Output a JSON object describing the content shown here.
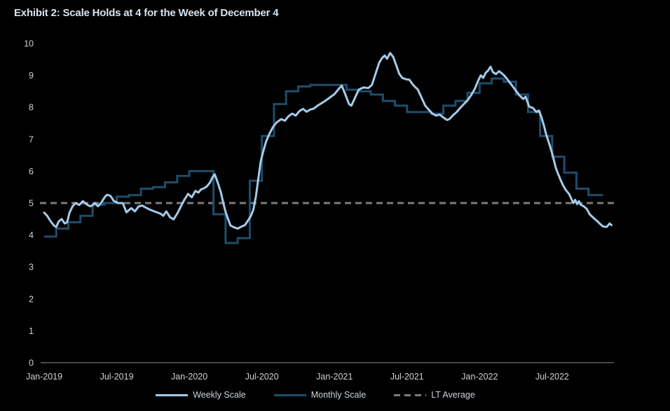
{
  "header": {
    "title": "Exhibit 2: Scale Holds at 4 for the Week of December 4"
  },
  "chart_data": {
    "type": "line",
    "title": "Exhibit 2: Scale Holds at 4 for the Week of December 4",
    "grid": false,
    "background_color": "#000000",
    "axis_line_color": "#8f8f8f",
    "tick_text_color": "#cdd2d7",
    "legend_position": "bottom",
    "x_axis": {
      "start": "Jan-2019",
      "end": "Dec-2022",
      "tick_labels": [
        "Jan-2019",
        "Jul-2019",
        "Jan-2020",
        "Jul-2020",
        "Jan-2021",
        "Jul-2021",
        "Jan-2022",
        "Jul-2022"
      ],
      "tick_month_offsets": [
        0,
        6,
        12,
        18,
        24,
        30,
        36,
        42
      ]
    },
    "y_axis": {
      "min": 0,
      "max": 10,
      "tick_step": 1,
      "tick_labels": [
        "0",
        "1",
        "2",
        "3",
        "4",
        "5",
        "6",
        "7",
        "8",
        "9",
        "10"
      ]
    },
    "series": [
      {
        "name": "Weekly Scale",
        "style": "line",
        "color": "#a5cbe9",
        "points_month_value": [
          [
            0,
            4.7
          ],
          [
            0.25,
            4.6
          ],
          [
            0.5,
            4.45
          ],
          [
            0.8,
            4.3
          ],
          [
            1,
            4.25
          ],
          [
            1.2,
            4.42
          ],
          [
            1.45,
            4.5
          ],
          [
            1.7,
            4.36
          ],
          [
            1.9,
            4.4
          ],
          [
            2.1,
            4.7
          ],
          [
            2.35,
            4.9
          ],
          [
            2.6,
            5.0
          ],
          [
            2.9,
            4.94
          ],
          [
            3.2,
            5.06
          ],
          [
            3.5,
            4.96
          ],
          [
            3.8,
            4.9
          ],
          [
            4,
            4.93
          ],
          [
            4.2,
            5.0
          ],
          [
            4.45,
            4.9
          ],
          [
            4.7,
            5.0
          ],
          [
            5,
            5.18
          ],
          [
            5.2,
            5.26
          ],
          [
            5.5,
            5.22
          ],
          [
            5.75,
            5.07
          ],
          [
            6.1,
            5.0
          ],
          [
            6.5,
            5.0
          ],
          [
            6.8,
            4.71
          ],
          [
            7.2,
            4.84
          ],
          [
            7.5,
            4.74
          ],
          [
            7.8,
            4.89
          ],
          [
            8.1,
            4.92
          ],
          [
            8.4,
            4.86
          ],
          [
            8.7,
            4.8
          ],
          [
            9.1,
            4.74
          ],
          [
            9.6,
            4.67
          ],
          [
            9.85,
            4.6
          ],
          [
            10.1,
            4.74
          ],
          [
            10.4,
            4.56
          ],
          [
            10.7,
            4.49
          ],
          [
            11,
            4.67
          ],
          [
            11.3,
            4.89
          ],
          [
            11.6,
            5.11
          ],
          [
            11.9,
            5.29
          ],
          [
            12.2,
            5.18
          ],
          [
            12.5,
            5.38
          ],
          [
            12.75,
            5.33
          ],
          [
            12.95,
            5.42
          ],
          [
            13.2,
            5.46
          ],
          [
            13.45,
            5.52
          ],
          [
            13.7,
            5.64
          ],
          [
            13.95,
            5.83
          ],
          [
            14.1,
            5.9
          ],
          [
            14.35,
            5.64
          ],
          [
            14.6,
            5.35
          ],
          [
            14.8,
            5.02
          ],
          [
            15,
            4.72
          ],
          [
            15.2,
            4.5
          ],
          [
            15.4,
            4.3
          ],
          [
            15.7,
            4.24
          ],
          [
            16,
            4.2
          ],
          [
            16.3,
            4.26
          ],
          [
            16.6,
            4.31
          ],
          [
            16.85,
            4.45
          ],
          [
            17.1,
            4.6
          ],
          [
            17.3,
            4.8
          ],
          [
            17.5,
            5.2
          ],
          [
            17.7,
            5.75
          ],
          [
            17.9,
            6.3
          ],
          [
            18.1,
            6.6
          ],
          [
            18.35,
            6.93
          ],
          [
            18.6,
            7.15
          ],
          [
            18.9,
            7.37
          ],
          [
            19.2,
            7.52
          ],
          [
            19.6,
            7.63
          ],
          [
            19.9,
            7.58
          ],
          [
            20.2,
            7.72
          ],
          [
            20.5,
            7.8
          ],
          [
            20.8,
            7.74
          ],
          [
            21.1,
            7.88
          ],
          [
            21.4,
            7.95
          ],
          [
            21.7,
            7.86
          ],
          [
            22,
            7.93
          ],
          [
            22.3,
            7.96
          ],
          [
            22.6,
            8.05
          ],
          [
            22.9,
            8.12
          ],
          [
            23.2,
            8.19
          ],
          [
            23.6,
            8.3
          ],
          [
            24,
            8.41
          ],
          [
            24.3,
            8.55
          ],
          [
            24.6,
            8.68
          ],
          [
            24.9,
            8.4
          ],
          [
            25.2,
            8.1
          ],
          [
            25.4,
            8.05
          ],
          [
            25.7,
            8.3
          ],
          [
            26,
            8.55
          ],
          [
            26.4,
            8.62
          ],
          [
            26.8,
            8.6
          ],
          [
            27.1,
            8.7
          ],
          [
            27.4,
            9.05
          ],
          [
            27.7,
            9.4
          ],
          [
            27.95,
            9.55
          ],
          [
            28.15,
            9.62
          ],
          [
            28.35,
            9.52
          ],
          [
            28.6,
            9.7
          ],
          [
            28.85,
            9.58
          ],
          [
            29.1,
            9.32
          ],
          [
            29.35,
            9.05
          ],
          [
            29.6,
            8.92
          ],
          [
            29.9,
            8.88
          ],
          [
            30.2,
            8.86
          ],
          [
            30.5,
            8.7
          ],
          [
            30.9,
            8.55
          ],
          [
            31.2,
            8.3
          ],
          [
            31.5,
            8.05
          ],
          [
            31.8,
            7.92
          ],
          [
            32.1,
            7.8
          ],
          [
            32.4,
            7.74
          ],
          [
            32.7,
            7.77
          ],
          [
            33,
            7.68
          ],
          [
            33.3,
            7.6
          ],
          [
            33.5,
            7.63
          ],
          [
            33.8,
            7.75
          ],
          [
            34.1,
            7.85
          ],
          [
            34.4,
            7.98
          ],
          [
            34.7,
            8.1
          ],
          [
            35,
            8.22
          ],
          [
            35.3,
            8.38
          ],
          [
            35.6,
            8.58
          ],
          [
            35.9,
            8.85
          ],
          [
            36.1,
            9.0
          ],
          [
            36.3,
            8.92
          ],
          [
            36.5,
            9.08
          ],
          [
            36.7,
            9.15
          ],
          [
            36.9,
            9.27
          ],
          [
            37.1,
            9.1
          ],
          [
            37.35,
            9.04
          ],
          [
            37.6,
            9.13
          ],
          [
            37.85,
            9.06
          ],
          [
            38.1,
            8.97
          ],
          [
            38.4,
            8.82
          ],
          [
            38.7,
            8.67
          ],
          [
            39,
            8.52
          ],
          [
            39.3,
            8.37
          ],
          [
            39.6,
            8.26
          ],
          [
            39.8,
            8.33
          ],
          [
            40.1,
            8.02
          ],
          [
            40.4,
            7.98
          ],
          [
            40.7,
            7.85
          ],
          [
            40.9,
            7.9
          ],
          [
            41.1,
            7.7
          ],
          [
            41.3,
            7.45
          ],
          [
            41.5,
            7.15
          ],
          [
            41.8,
            6.8
          ],
          [
            42,
            6.55
          ],
          [
            42.3,
            6.1
          ],
          [
            42.5,
            5.9
          ],
          [
            42.7,
            5.72
          ],
          [
            42.9,
            5.55
          ],
          [
            43.1,
            5.42
          ],
          [
            43.4,
            5.28
          ],
          [
            43.6,
            5.12
          ],
          [
            43.75,
            5.0
          ],
          [
            43.9,
            5.1
          ],
          [
            44.05,
            4.97
          ],
          [
            44.2,
            5.06
          ],
          [
            44.35,
            4.95
          ],
          [
            44.6,
            4.9
          ],
          [
            44.85,
            4.82
          ],
          [
            45.1,
            4.65
          ],
          [
            45.4,
            4.54
          ],
          [
            45.7,
            4.44
          ],
          [
            46,
            4.33
          ],
          [
            46.2,
            4.27
          ],
          [
            46.5,
            4.25
          ],
          [
            46.75,
            4.36
          ],
          [
            46.9,
            4.31
          ]
        ]
      },
      {
        "name": "Monthly Scale",
        "style": "step",
        "color": "#1e4d6b",
        "start_month": "Jan-2019",
        "end_month": "Oct-2022",
        "monthly_values": [
          3.95,
          4.2,
          4.4,
          4.6,
          4.95,
          5.0,
          5.2,
          5.25,
          5.45,
          5.5,
          5.65,
          5.85,
          6.0,
          6.0,
          4.65,
          3.75,
          3.9,
          5.7,
          7.1,
          8.1,
          8.5,
          8.65,
          8.7,
          8.7,
          8.7,
          8.55,
          8.5,
          8.4,
          8.2,
          8.05,
          7.85,
          7.85,
          7.8,
          8.05,
          8.2,
          8.45,
          8.75,
          8.9,
          8.8,
          8.4,
          7.85,
          7.1,
          6.45,
          5.95,
          5.45,
          5.25
        ]
      },
      {
        "name": "LT Average",
        "style": "dashed-horizontal",
        "color": "#7d7d7d",
        "value": 5
      }
    ]
  }
}
